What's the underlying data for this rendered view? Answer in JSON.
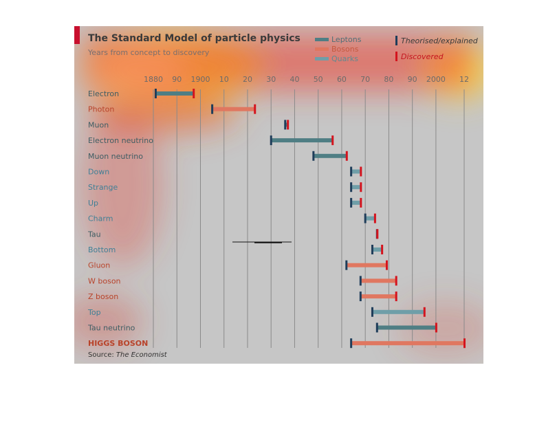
{
  "header": {
    "title": "The Standard Model of particle physics",
    "subtitle": "Years from concept to discovery"
  },
  "legend": {
    "groups": [
      {
        "label": "Leptons",
        "color": "#4f7e84"
      },
      {
        "label": "Bosons",
        "color": "#e07760"
      },
      {
        "label": "Quarks",
        "color": "#6f9ea8"
      }
    ],
    "markers": [
      {
        "label": "Theorised/explained",
        "color": "#1f3d5a"
      },
      {
        "label": "Discovered",
        "color": "#d4141e"
      }
    ]
  },
  "source": {
    "prefix": "Source: ",
    "name": "The Economist"
  },
  "chart_data": {
    "type": "bar",
    "xlim": [
      1880,
      2012
    ],
    "x_ticks": [
      {
        "value": 1880,
        "label": "1880"
      },
      {
        "value": 1890,
        "label": "90"
      },
      {
        "value": 1900,
        "label": "1900"
      },
      {
        "value": 1910,
        "label": "10"
      },
      {
        "value": 1920,
        "label": "20"
      },
      {
        "value": 1930,
        "label": "30"
      },
      {
        "value": 1940,
        "label": "40"
      },
      {
        "value": 1950,
        "label": "50"
      },
      {
        "value": 1960,
        "label": "60"
      },
      {
        "value": 1970,
        "label": "70"
      },
      {
        "value": 1980,
        "label": "80"
      },
      {
        "value": 1990,
        "label": "90"
      },
      {
        "value": 2000,
        "label": "2000"
      },
      {
        "value": 2012,
        "label": "12"
      }
    ],
    "grid": true,
    "particles": [
      {
        "name": "Electron",
        "group": "Leptons",
        "theorised": 1881,
        "discovered": 1897
      },
      {
        "name": "Photon",
        "group": "Bosons",
        "theorised": 1905,
        "discovered": 1923
      },
      {
        "name": "Muon",
        "group": "Leptons",
        "theorised": 1936,
        "discovered": 1937
      },
      {
        "name": "Electron neutrino",
        "group": "Leptons",
        "theorised": 1930,
        "discovered": 1956
      },
      {
        "name": "Muon neutrino",
        "group": "Leptons",
        "theorised": 1948,
        "discovered": 1962
      },
      {
        "name": "Down",
        "group": "Quarks",
        "theorised": 1964,
        "discovered": 1968
      },
      {
        "name": "Strange",
        "group": "Quarks",
        "theorised": 1964,
        "discovered": 1968
      },
      {
        "name": "Up",
        "group": "Quarks",
        "theorised": 1964,
        "discovered": 1968
      },
      {
        "name": "Charm",
        "group": "Quarks",
        "theorised": 1970,
        "discovered": 1974
      },
      {
        "name": "Tau",
        "group": "Leptons",
        "theorised": 1975,
        "discovered": 1975
      },
      {
        "name": "Bottom",
        "group": "Quarks",
        "theorised": 1973,
        "discovered": 1977
      },
      {
        "name": "Gluon",
        "group": "Bosons",
        "theorised": 1962,
        "discovered": 1979
      },
      {
        "name": "W boson",
        "group": "Bosons",
        "theorised": 1968,
        "discovered": 1983
      },
      {
        "name": "Z boson",
        "group": "Bosons",
        "theorised": 1968,
        "discovered": 1983
      },
      {
        "name": "Top",
        "group": "Quarks",
        "theorised": 1973,
        "discovered": 1995
      },
      {
        "name": "Tau neutrino",
        "group": "Leptons",
        "theorised": 1975,
        "discovered": 2000
      },
      {
        "name": "HIGGS BOSON",
        "group": "Bosons",
        "theorised": 1964,
        "discovered": 2012
      }
    ]
  }
}
